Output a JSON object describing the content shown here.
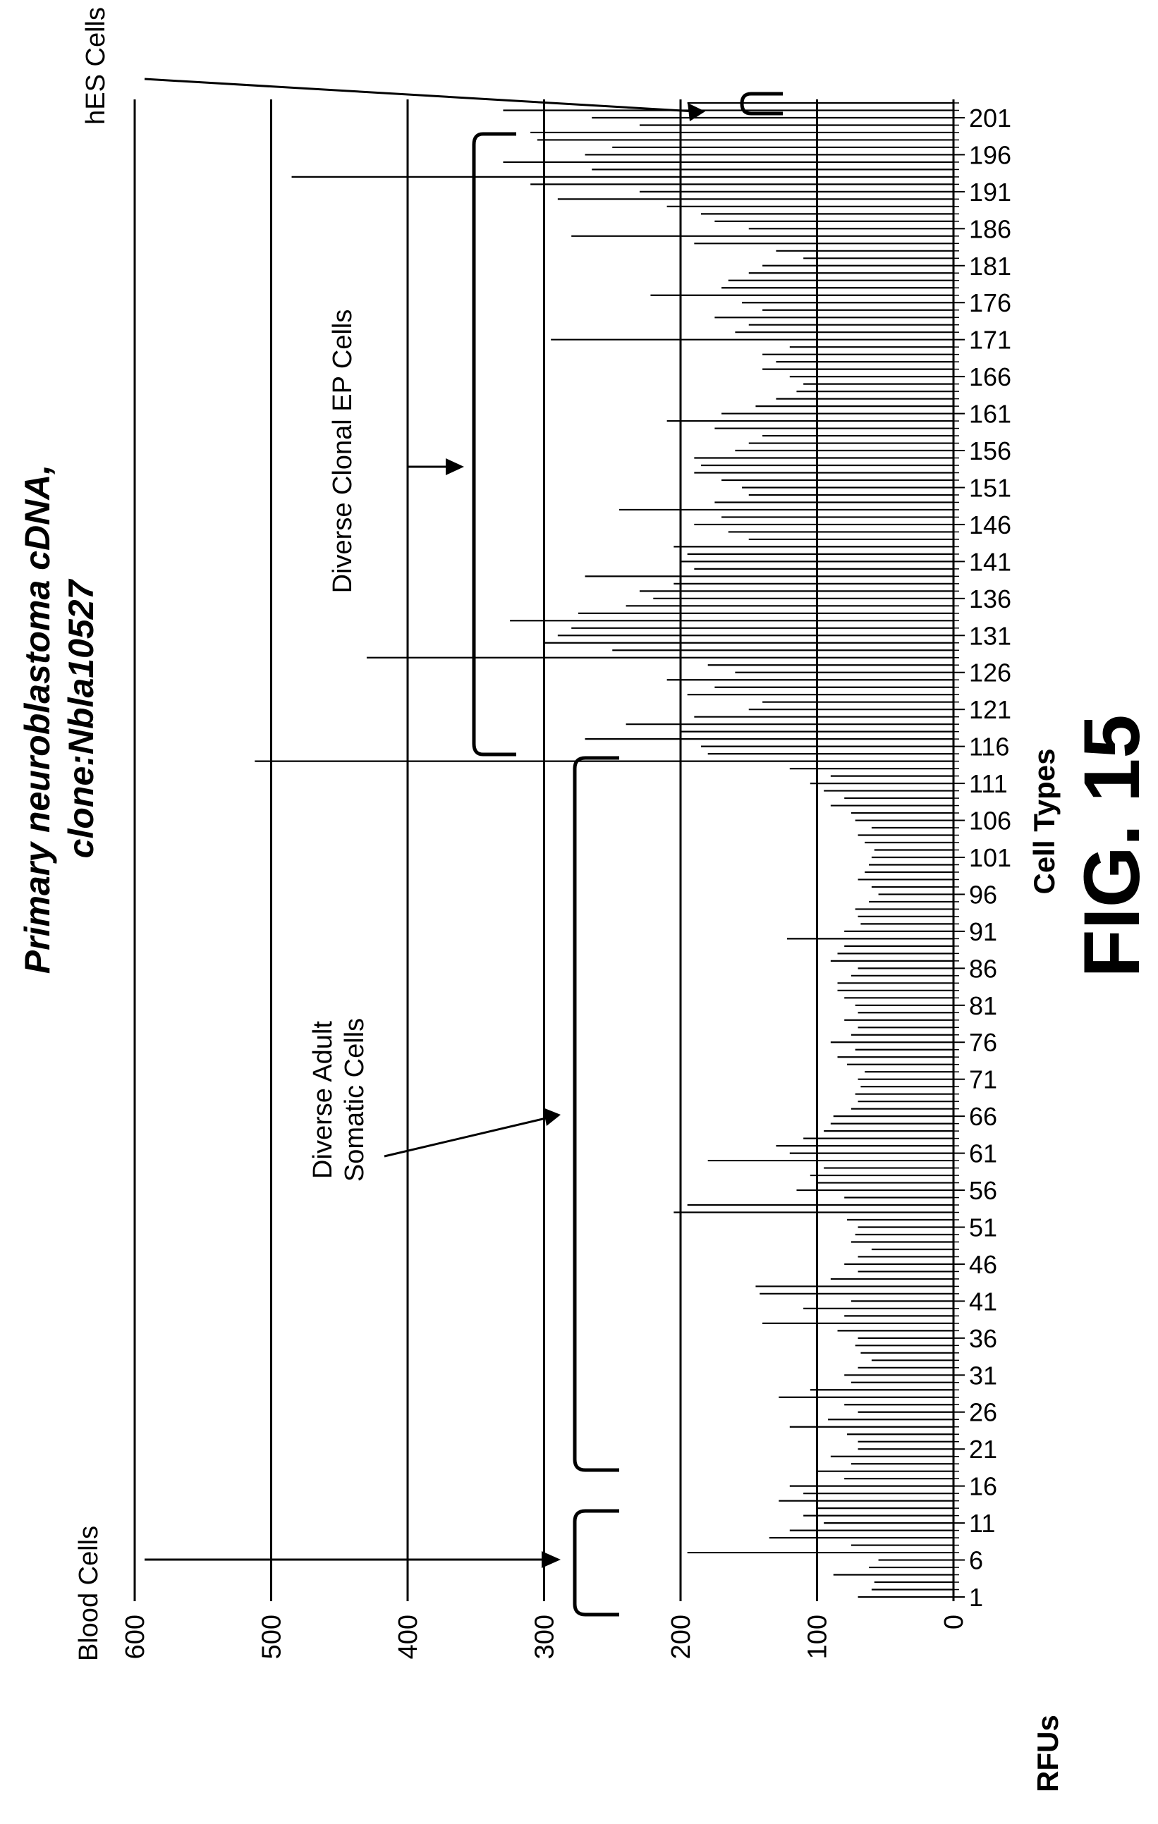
{
  "chart_data": {
    "type": "bar",
    "orientation": "horizontal",
    "title_line1": "Primary neuroblastoma cDNA,",
    "title_line2": "clone:Nbla10527",
    "xlabel": "RFUs",
    "ylabel": "Cell Types",
    "figure_label": "FIG. 15",
    "xlim": [
      0,
      600
    ],
    "x_ticks": [
      "0",
      "100",
      "200",
      "300",
      "400",
      "500",
      "600"
    ],
    "category_count": 203,
    "category_tick_labels": [
      "1",
      "6",
      "11",
      "16",
      "21",
      "26",
      "31",
      "36",
      "41",
      "46",
      "51",
      "56",
      "61",
      "66",
      "71",
      "76",
      "81",
      "86",
      "91",
      "96",
      "101",
      "106",
      "111",
      "116",
      "121",
      "126",
      "131",
      "136",
      "141",
      "146",
      "151",
      "156",
      "161",
      "166",
      "171",
      "176",
      "181",
      "186",
      "191",
      "196",
      "201"
    ],
    "values": [
      70,
      60,
      58,
      88,
      62,
      55,
      195,
      75,
      135,
      120,
      95,
      110,
      100,
      128,
      110,
      120,
      80,
      100,
      75,
      90,
      70,
      70,
      78,
      120,
      92,
      70,
      80,
      128,
      105,
      75,
      80,
      70,
      60,
      68,
      72,
      70,
      85,
      140,
      80,
      110,
      75,
      142,
      145,
      90,
      70,
      80,
      70,
      60,
      75,
      72,
      70,
      78,
      205,
      195,
      80,
      115,
      100,
      105,
      95,
      180,
      120,
      130,
      110,
      95,
      90,
      88,
      75,
      70,
      72,
      68,
      70,
      65,
      78,
      85,
      72,
      90,
      75,
      70,
      80,
      70,
      72,
      80,
      85,
      85,
      75,
      70,
      90,
      85,
      80,
      122,
      80,
      68,
      70,
      72,
      62,
      55,
      60,
      70,
      65,
      62,
      60,
      58,
      65,
      70,
      60,
      72,
      75,
      90,
      80,
      95,
      105,
      90,
      120,
      512,
      180,
      185,
      270,
      200,
      240,
      190,
      150,
      140,
      195,
      175,
      210,
      160,
      180,
      430,
      250,
      300,
      290,
      280,
      325,
      275,
      240,
      220,
      230,
      205,
      270,
      190,
      200,
      195,
      205,
      150,
      165,
      190,
      170,
      245,
      175,
      150,
      155,
      170,
      190,
      185,
      190,
      160,
      150,
      140,
      175,
      210,
      170,
      145,
      130,
      115,
      110,
      120,
      140,
      130,
      140,
      120,
      295,
      160,
      150,
      175,
      140,
      155,
      222,
      170,
      165,
      150,
      140,
      110,
      130,
      190,
      280,
      150,
      175,
      185,
      210,
      290,
      230,
      310,
      485,
      265,
      330,
      270,
      250,
      305,
      310,
      230,
      265,
      330,
      195
    ],
    "annotations": {
      "blood_cells": "Blood Cells",
      "diverse_adult_line1": "Diverse Adult",
      "diverse_adult_line2": "Somatic Cells",
      "diverse_clonal": "Diverse Clonal EP Cells",
      "hes_cells": "hES Cells"
    },
    "grid": true,
    "legend": "none"
  }
}
